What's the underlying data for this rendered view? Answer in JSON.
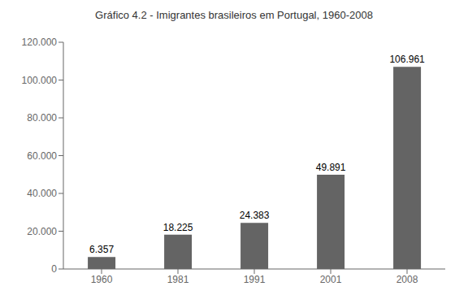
{
  "chart_data": {
    "type": "bar",
    "title": "Gráfico 4.2 - Imigrantes brasileiros em Portugal, 1960-2008",
    "categories": [
      "1960",
      "1981",
      "1991",
      "2001",
      "2008"
    ],
    "values": [
      6357,
      18225,
      24383,
      49891,
      106961
    ],
    "value_labels": [
      "6.357",
      "18.225",
      "24.383",
      "49.891",
      "106.961"
    ],
    "color": "#646464",
    "ylim": [
      0,
      120000
    ],
    "yticks": [
      0,
      {
        "value": 20000,
        "label": "20.000"
      },
      {
        "value": 40000,
        "label": "40.000"
      },
      {
        "value": 60000,
        "label": "60.000"
      },
      {
        "value": 80000,
        "label": "80.000"
      },
      {
        "value": 100000,
        "label": "100.000"
      },
      {
        "value": 120000,
        "label": "120.000"
      }
    ],
    "grid": false,
    "data_labels": true
  }
}
